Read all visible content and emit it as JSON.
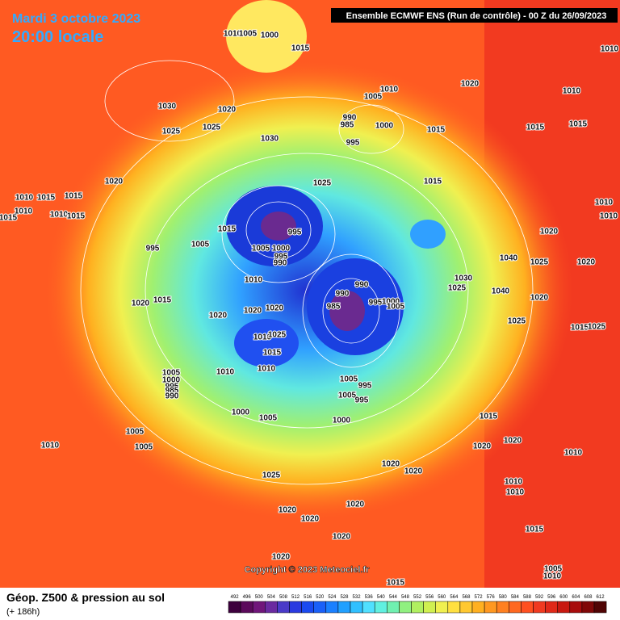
{
  "header": {
    "date": "Mardi 3 octobre 2023",
    "time": "20:00 locale",
    "model": "Ensemble ECMWF ENS  (Run de contrôle)  -  00 Z du 26/09/2023"
  },
  "footer": {
    "title": "Géop. Z500 & pression au sol",
    "lead": "(+ 186h)",
    "copyright": "Copyright © 2023 Meteociel.fr"
  },
  "scale": {
    "values": [
      492,
      496,
      500,
      504,
      508,
      512,
      516,
      520,
      524,
      528,
      532,
      536,
      540,
      544,
      548,
      552,
      556,
      560,
      564,
      568,
      572,
      576,
      580,
      584,
      588,
      592,
      596,
      600,
      604,
      608,
      612
    ],
    "colors": [
      "#3d003d",
      "#5b0a5b",
      "#70167a",
      "#6a2aa0",
      "#4a3ac8",
      "#2a3ae0",
      "#1a4af0",
      "#1a60f8",
      "#1a80ff",
      "#20a0ff",
      "#30c0ff",
      "#50e0ff",
      "#60f0e0",
      "#70f0b0",
      "#90f080",
      "#b0f060",
      "#d0f050",
      "#f0f050",
      "#ffe040",
      "#ffc830",
      "#ffb020",
      "#ff9820",
      "#ff8020",
      "#ff6820",
      "#ff5020",
      "#f03a20",
      "#e02818",
      "#c81810",
      "#a80c0c",
      "#800808",
      "#500404"
    ]
  },
  "isobar_labels": [
    1010,
    1005,
    1000,
    1015,
    1030,
    1020,
    1025,
    1025,
    1010,
    1005,
    990,
    985,
    1000,
    995,
    1015,
    1020,
    1030,
    1025,
    1015,
    1020,
    1010,
    1015,
    1015,
    1010,
    1010,
    1015,
    1015,
    1015,
    1005,
    995,
    995,
    1005,
    1000,
    995,
    990,
    1010,
    990,
    990,
    985,
    995,
    1000,
    1005,
    1020,
    1015,
    1020,
    1020,
    1020,
    1010,
    1025,
    1015,
    1010,
    1010,
    1005,
    1000,
    995,
    985,
    990,
    1005,
    995,
    1005,
    995,
    1000,
    1005,
    1000,
    1005,
    1010,
    1005,
    1025,
    1020,
    1020,
    1020,
    1020,
    1020,
    1015,
    1020,
    1020,
    1015,
    1020,
    1020,
    1025,
    1020,
    1030,
    1025,
    1040,
    1040,
    1020,
    1025,
    1015,
    1015,
    1010,
    1010,
    1010,
    1010,
    1020,
    1015,
    1025,
    1010,
    1010,
    1010,
    1015,
    1010,
    1005
  ]
}
